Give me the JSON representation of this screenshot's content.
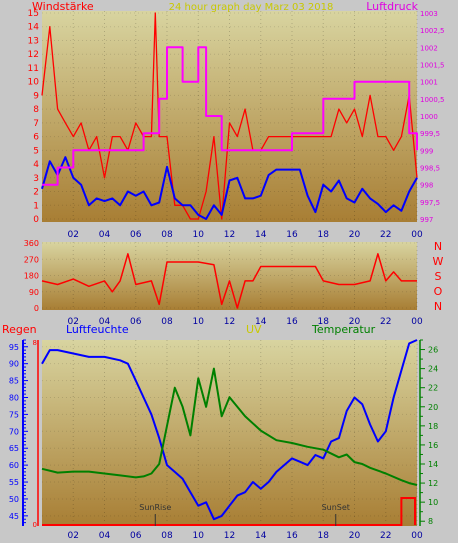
{
  "panels": {
    "wind": {
      "left_label": "Windstärke",
      "title": "24 hour graph day   Marz 03 2018",
      "right_label": "Luftdruck"
    },
    "direction": {
      "compass": [
        "N",
        "W",
        "S",
        "O",
        "N"
      ]
    },
    "climate": {
      "rain_label": "Regen",
      "humidity_label": "Luftfeuchte",
      "uv_label": "UV",
      "temperature_label": "Temperatur"
    }
  },
  "colors": {
    "wind_gust": "#ff0000",
    "wind_avg": "#0000ff",
    "pressure": "#ff00ff",
    "direction": "#ff0000",
    "humidity": "#0000ff",
    "temperature": "#008000",
    "rain": "#ff0000",
    "axis_red": "#ff0000",
    "axis_pressure": "#e000e0",
    "axis_blue": "#0000ff",
    "axis_green": "#008000",
    "tick_text": "#0000a0"
  },
  "chart_data": [
    {
      "type": "line",
      "xlim": [
        0,
        24
      ],
      "x_ticks": [
        "02",
        "04",
        "06",
        "08",
        "10",
        "12",
        "14",
        "16",
        "18",
        "20",
        "22",
        "00"
      ],
      "y_left": {
        "label": "Windstärke",
        "ylim": [
          0,
          15
        ],
        "ticks": [
          0,
          1,
          2,
          3,
          4,
          5,
          6,
          7,
          8,
          9,
          10,
          11,
          12,
          13,
          14,
          15
        ]
      },
      "y_right": {
        "label": "Luftdruck",
        "ylim": [
          997,
          1003
        ],
        "ticks": [
          "997",
          "997,5",
          "998",
          "998,5",
          "999",
          "999,5",
          "1000",
          "1000,5",
          "1001",
          "1001,5",
          "1002",
          "1002,5",
          "1003"
        ]
      },
      "series": [
        {
          "key": "gust",
          "axis": "left",
          "x": [
            0,
            0.5,
            1,
            1.5,
            2,
            2.5,
            3,
            3.5,
            4,
            4.5,
            5,
            5.5,
            6,
            6.5,
            7,
            7.25,
            7.5,
            8,
            8.5,
            9,
            9.5,
            10,
            10.5,
            11,
            11.5,
            12,
            12.5,
            13,
            13.5,
            14,
            14.5,
            15,
            15.5,
            16,
            16.5,
            17,
            17.5,
            18,
            18.5,
            19,
            19.5,
            20,
            20.5,
            21,
            21.5,
            22,
            22.5,
            23,
            23.5,
            24
          ],
          "y": [
            9,
            14,
            8,
            7,
            6,
            7,
            5,
            6,
            3,
            6,
            6,
            5,
            7,
            6,
            6,
            15,
            6,
            6,
            1,
            1,
            0,
            0,
            2,
            6,
            0,
            7,
            6,
            8,
            5,
            5,
            6,
            6,
            6,
            6,
            6,
            6,
            6,
            6,
            6,
            8,
            7,
            8,
            6,
            9,
            6,
            6,
            5,
            6,
            9,
            3
          ]
        },
        {
          "key": "average",
          "axis": "left",
          "x": [
            0,
            0.5,
            1,
            1.5,
            2,
            2.5,
            3,
            3.5,
            4,
            4.5,
            5,
            5.5,
            6,
            6.5,
            7,
            7.5,
            8,
            8.5,
            9,
            9.5,
            10,
            10.5,
            11,
            11.5,
            12,
            12.5,
            13,
            13.5,
            14,
            14.5,
            15,
            15.5,
            16,
            16.5,
            17,
            17.5,
            18,
            18.5,
            19,
            19.5,
            20,
            20.5,
            21,
            21.5,
            22,
            22.5,
            23,
            23.5,
            24
          ],
          "y": [
            2.2,
            4.2,
            3.2,
            4.5,
            3,
            2.5,
            1,
            1.5,
            1.3,
            1.5,
            1,
            2,
            1.7,
            2,
            1,
            1.2,
            3.8,
            1.5,
            1,
            1,
            0.3,
            0,
            1,
            0.3,
            2.8,
            3,
            1.5,
            1.5,
            1.7,
            3.2,
            3.6,
            3.6,
            3.6,
            3.6,
            1.7,
            0.5,
            2.5,
            2,
            2.8,
            1.5,
            1.2,
            2.2,
            1.5,
            1.1,
            0.5,
            1,
            0.6,
            2,
            3
          ]
        },
        {
          "key": "pressure",
          "axis": "right",
          "x": [
            0,
            1,
            2,
            3,
            4,
            5,
            6,
            6.5,
            7,
            7.5,
            8,
            8.5,
            9,
            9.5,
            10,
            10.5,
            11,
            11.5,
            12,
            13,
            14,
            15,
            16,
            17,
            18,
            19,
            19.5,
            20,
            21,
            22,
            23,
            23.5,
            24
          ],
          "y": [
            998,
            998.5,
            999,
            999,
            999,
            999,
            999,
            999.5,
            999.5,
            1000.5,
            1002,
            1002,
            1001,
            1001,
            1002,
            1000,
            1000,
            999,
            999,
            999,
            999,
            999,
            999.5,
            999.5,
            1000.5,
            1000.5,
            1000.5,
            1001,
            1001,
            1001,
            1001,
            999.5,
            999
          ]
        }
      ]
    },
    {
      "type": "line",
      "xlim": [
        0,
        24
      ],
      "x_ticks": [
        "02",
        "04",
        "06",
        "08",
        "10",
        "12",
        "14",
        "16",
        "18",
        "20",
        "22",
        "00"
      ],
      "ylim": [
        0,
        360
      ],
      "y_ticks": [
        0,
        90,
        180,
        270,
        360
      ],
      "series": [
        {
          "key": "direction",
          "x": [
            0,
            1,
            2,
            3,
            4,
            4.5,
            5,
            5.5,
            6,
            7,
            7.5,
            8,
            9,
            10,
            11,
            11.5,
            12,
            12.5,
            13,
            13.5,
            14,
            15,
            16,
            17,
            17.5,
            18,
            19,
            20,
            21,
            21.5,
            22,
            22.5,
            23,
            23.5,
            24
          ],
          "y": [
            150,
            130,
            160,
            120,
            150,
            90,
            150,
            300,
            130,
            150,
            20,
            255,
            255,
            255,
            240,
            20,
            150,
            0,
            150,
            150,
            230,
            230,
            230,
            230,
            230,
            150,
            130,
            130,
            150,
            300,
            150,
            200,
            150,
            150,
            150
          ]
        }
      ]
    },
    {
      "type": "line",
      "xlim": [
        0,
        24
      ],
      "x_ticks": [
        "02",
        "04",
        "06",
        "08",
        "10",
        "12",
        "14",
        "16",
        "18",
        "20",
        "22",
        "00"
      ],
      "humidity_axis": {
        "label": "Luftfeuchte",
        "ylim": [
          42,
          97
        ],
        "ticks": [
          45,
          50,
          55,
          60,
          65,
          70,
          75,
          80,
          85,
          90,
          95
        ]
      },
      "temperature_axis": {
        "label": "Temperatur",
        "ylim": [
          7.5,
          27
        ],
        "ticks": [
          8,
          10,
          12,
          14,
          16,
          18,
          20,
          22,
          24,
          26
        ]
      },
      "rain_axis": {
        "label": "Regen",
        "ticks": [
          0,
          8
        ]
      },
      "markers": [
        {
          "label": "SunRise",
          "x": 7.25
        },
        {
          "label": "SunSet",
          "x": 18.8
        }
      ],
      "series": [
        {
          "key": "humidity",
          "axis": "humidity",
          "x": [
            0,
            0.5,
            1,
            2,
            3,
            4,
            5,
            5.5,
            6,
            6.5,
            7,
            7.5,
            8,
            8.5,
            9,
            9.5,
            10,
            10.5,
            11,
            11.5,
            12,
            12.5,
            13,
            13.5,
            14,
            14.5,
            15,
            15.5,
            16,
            16.5,
            17,
            17.5,
            18,
            18.5,
            19,
            19.5,
            20,
            20.5,
            21,
            21.5,
            22,
            22.5,
            23,
            23.5,
            24
          ],
          "y": [
            90,
            94,
            94,
            93,
            92,
            92,
            91,
            90,
            85,
            80,
            75,
            68,
            60,
            58,
            56,
            52,
            48,
            49,
            44,
            45,
            48,
            51,
            52,
            55,
            53,
            55,
            58,
            60,
            62,
            61,
            60,
            63,
            62,
            67,
            68,
            76,
            80,
            78,
            72,
            67,
            70,
            80,
            88,
            96,
            97
          ]
        },
        {
          "key": "temperature",
          "axis": "temperature",
          "x": [
            0,
            1,
            2,
            3,
            4,
            5,
            6,
            6.5,
            7,
            7.5,
            8,
            8.5,
            9,
            9.5,
            10,
            10.5,
            11,
            11.5,
            12,
            12.5,
            13,
            14,
            15,
            16,
            17,
            18,
            19,
            19.5,
            20,
            20.5,
            21,
            22,
            23,
            23.5,
            24
          ],
          "y": [
            13.5,
            13.1,
            13.2,
            13.2,
            13,
            12.8,
            12.6,
            12.7,
            13,
            14,
            18,
            22,
            20,
            17,
            23,
            20,
            24,
            19,
            21,
            20,
            19,
            17.5,
            16.5,
            16.2,
            15.8,
            15.5,
            14.7,
            15,
            14.2,
            14,
            13.6,
            13,
            12.3,
            12,
            11.8
          ]
        },
        {
          "key": "rain",
          "axis": "rain",
          "x": [
            0,
            23,
            23,
            24
          ],
          "y": [
            0,
            0,
            1,
            1
          ]
        }
      ]
    }
  ]
}
